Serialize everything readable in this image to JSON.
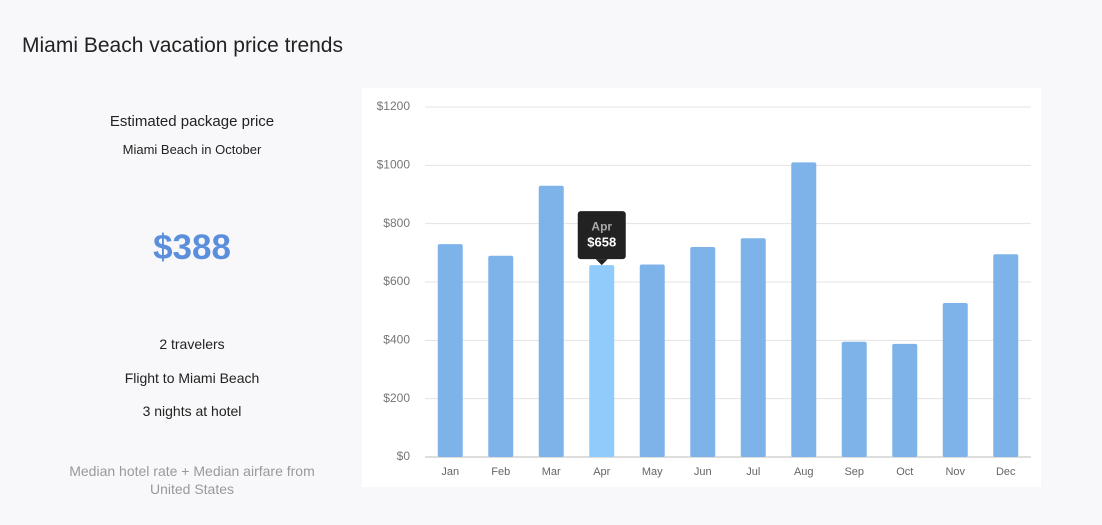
{
  "title": "Miami Beach vacation price trends",
  "summary": {
    "heading": "Estimated package price",
    "subheading": "Miami Beach in October",
    "price": "$388",
    "details": [
      "2 travelers",
      "Flight to Miami Beach",
      "3 nights at hotel"
    ],
    "note": "Median hotel rate + Median airfare from United States"
  },
  "chart_data": {
    "type": "bar",
    "categories": [
      "Jan",
      "Feb",
      "Mar",
      "Apr",
      "May",
      "Jun",
      "Jul",
      "Aug",
      "Sep",
      "Oct",
      "Nov",
      "Dec"
    ],
    "values": [
      730,
      690,
      930,
      658,
      660,
      720,
      750,
      1010,
      395,
      388,
      528,
      695
    ],
    "value_labels": [
      null,
      null,
      null,
      "$658",
      null,
      null,
      null,
      null,
      null,
      null,
      null,
      null
    ],
    "color": "#7eb3ea",
    "highlight_color": "#90cbfb",
    "ylim": [
      0,
      1200
    ],
    "yticks": [
      {
        "value": 0,
        "label": "$0"
      },
      {
        "value": 200,
        "label": "$200"
      },
      {
        "value": 400,
        "label": "$400"
      },
      {
        "value": 600,
        "label": "$600"
      },
      {
        "value": 800,
        "label": "$800"
      },
      {
        "value": 1000,
        "label": "$1000"
      },
      {
        "value": 1200,
        "label": "$1200"
      }
    ],
    "grid": true
  }
}
